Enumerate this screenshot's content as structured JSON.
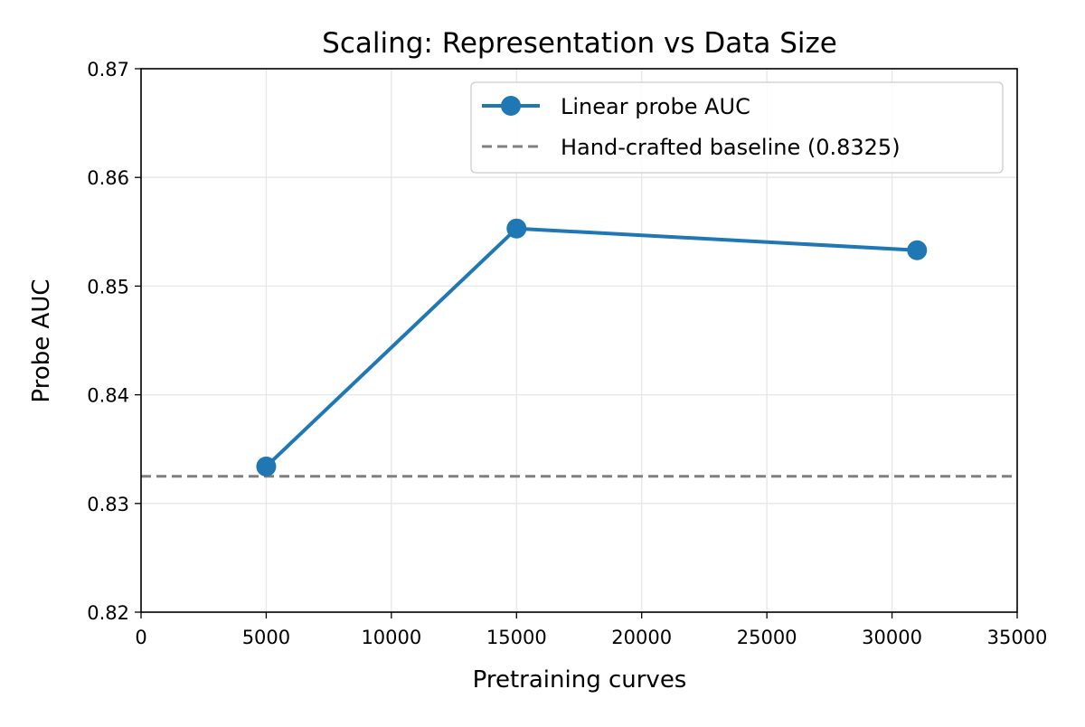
{
  "chart_data": {
    "type": "line",
    "title": "Scaling: Representation vs Data Size",
    "xlabel": "Pretraining curves",
    "ylabel": "Probe AUC",
    "xlim": [
      0,
      35000
    ],
    "ylim": [
      0.82,
      0.87
    ],
    "x_ticks": [
      "0",
      "5000",
      "10000",
      "15000",
      "20000",
      "25000",
      "30000",
      "35000"
    ],
    "y_ticks": [
      "0.82",
      "0.83",
      "0.84",
      "0.85",
      "0.86",
      "0.87"
    ],
    "grid": true,
    "legend_position": "top-right",
    "series": [
      {
        "name": "Linear probe AUC",
        "color": "#1f77b4",
        "marker": "circle",
        "x": [
          5000,
          15000,
          31000
        ],
        "y": [
          0.8334,
          0.8553,
          0.8533
        ]
      }
    ],
    "reference_lines": [
      {
        "name": "Hand-crafted baseline (0.8325)",
        "y": 0.8325,
        "color": "#808080",
        "style": "dashed"
      }
    ]
  }
}
